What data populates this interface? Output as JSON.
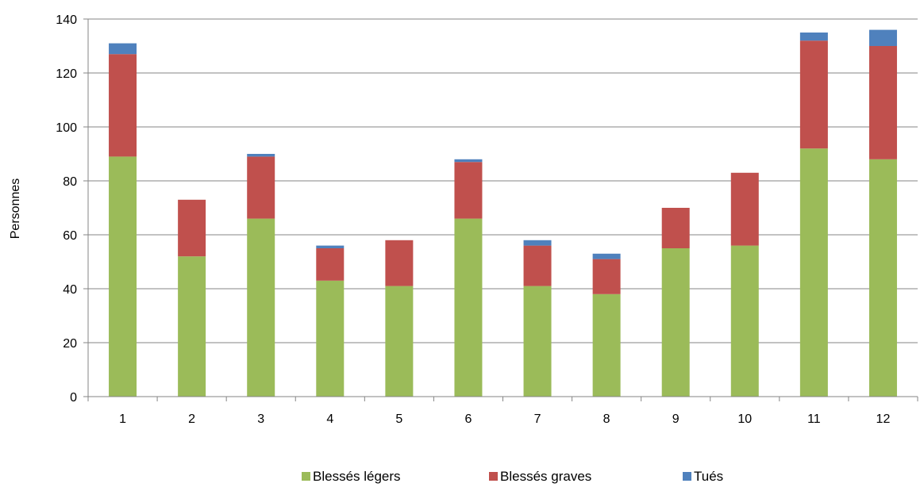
{
  "chart_data": {
    "type": "bar",
    "stacked": true,
    "categories": [
      "1",
      "2",
      "3",
      "4",
      "5",
      "6",
      "7",
      "8",
      "9",
      "10",
      "11",
      "12"
    ],
    "series": [
      {
        "name": "Blessés légers",
        "color": "#9BBB59",
        "values": [
          89,
          52,
          66,
          43,
          41,
          66,
          41,
          38,
          55,
          56,
          92,
          88
        ]
      },
      {
        "name": "Blessés graves",
        "color": "#C0504D",
        "values": [
          38,
          21,
          23,
          12,
          17,
          21,
          15,
          13,
          15,
          27,
          40,
          42
        ]
      },
      {
        "name": "Tués",
        "color": "#4F81BD",
        "values": [
          4,
          0,
          1,
          1,
          0,
          1,
          2,
          2,
          0,
          0,
          3,
          6
        ]
      }
    ],
    "title": "",
    "xlabel": "",
    "ylabel": "Personnes",
    "ylim": [
      0,
      140
    ],
    "yticks": [
      0,
      20,
      40,
      60,
      80,
      100,
      120,
      140
    ],
    "grid": true,
    "legend": "bottom"
  }
}
